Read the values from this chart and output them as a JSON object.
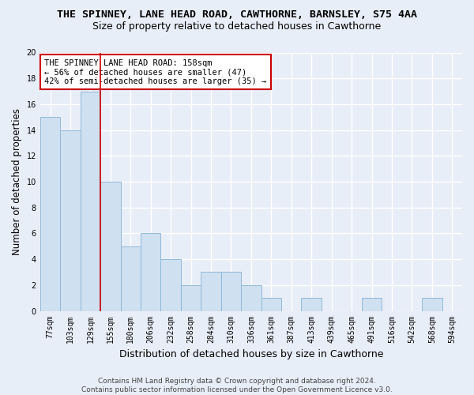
{
  "title": "THE SPINNEY, LANE HEAD ROAD, CAWTHORNE, BARNSLEY, S75 4AA",
  "subtitle": "Size of property relative to detached houses in Cawthorne",
  "xlabel": "Distribution of detached houses by size in Cawthorne",
  "ylabel": "Number of detached properties",
  "categories": [
    "77sqm",
    "103sqm",
    "129sqm",
    "155sqm",
    "180sqm",
    "206sqm",
    "232sqm",
    "258sqm",
    "284sqm",
    "310sqm",
    "336sqm",
    "361sqm",
    "387sqm",
    "413sqm",
    "439sqm",
    "465sqm",
    "491sqm",
    "516sqm",
    "542sqm",
    "568sqm",
    "594sqm"
  ],
  "values": [
    15,
    14,
    17,
    10,
    5,
    6,
    4,
    2,
    3,
    3,
    2,
    1,
    0,
    1,
    0,
    0,
    1,
    0,
    0,
    1,
    0
  ],
  "bar_color": "#cfe0f0",
  "bar_edge_color": "#92b8d8",
  "vline_index": 3,
  "vline_color": "#cc0000",
  "annotation_text": "THE SPINNEY LANE HEAD ROAD: 158sqm\n← 56% of detached houses are smaller (47)\n42% of semi-detached houses are larger (35) →",
  "annotation_box_color": "#ffffff",
  "annotation_box_edge_color": "#cc0000",
  "ylim": [
    0,
    20
  ],
  "yticks": [
    0,
    2,
    4,
    6,
    8,
    10,
    12,
    14,
    16,
    18,
    20
  ],
  "fig_background_color": "#e8eef8",
  "plot_background_color": "#e8eef8",
  "grid_color": "#ffffff",
  "footer": "Contains HM Land Registry data © Crown copyright and database right 2024.\nContains public sector information licensed under the Open Government Licence v3.0.",
  "title_fontsize": 9.5,
  "subtitle_fontsize": 9,
  "xlabel_fontsize": 9,
  "ylabel_fontsize": 8.5,
  "tick_fontsize": 7,
  "annotation_fontsize": 7.5,
  "footer_fontsize": 6.5
}
